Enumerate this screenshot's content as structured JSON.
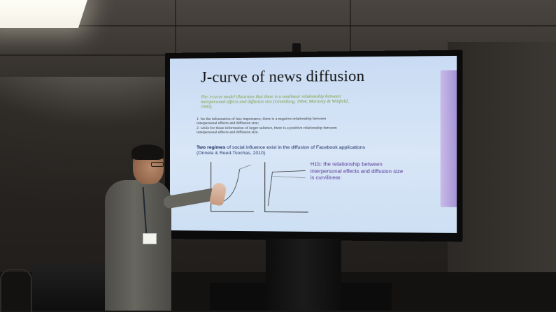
{
  "slide": {
    "title": "J-curve of news diffusion",
    "quote": "The J-curve model illustrates that there is a nonlinear relationship between interpersonal effects and diffusion size (Greenberg, 1964; Moriarty & Winfield, 1993).",
    "point_1": "1. for the information of less importance, there is a negative relationship between interpersonal effects and diffusion size;",
    "point_2": "2. while for those information of larger salience, there is a positive relationship between interpersonal effects and diffusion size.",
    "regimes_strong": "Two regimes",
    "regimes_text": " of social influence exist in the diffusion of Facebook applications",
    "regimes_citation": "(Onnela & Reed-Tsochas, 2010)",
    "hypothesis": "H1b: the relationship between interpersonal effects and diffusion size is curvilinear."
  },
  "colors": {
    "screen_background": "#cfe0f5",
    "title_text": "#121212",
    "quote_text": "#7a9b2f",
    "regimes_text": "#1a2f63",
    "hypothesis_text": "#5a3a9a",
    "accent_band": "#9d86cf"
  }
}
